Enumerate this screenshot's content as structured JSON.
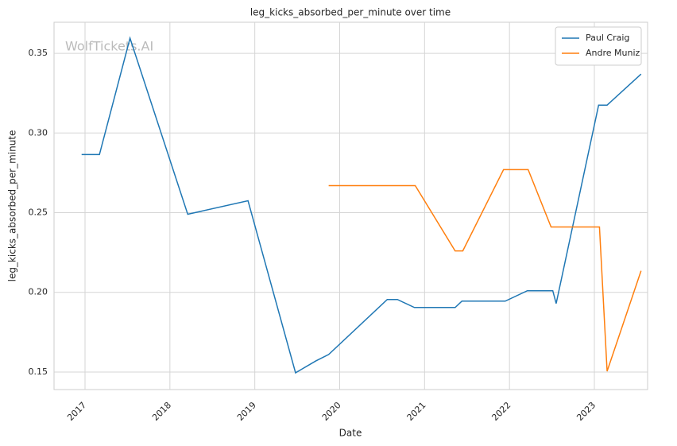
{
  "chart_data": {
    "type": "line",
    "title": "leg_kicks_absorbed_per_minute over time",
    "xlabel": "Date",
    "ylabel": "leg_kicks_absorbed_per_minute",
    "watermark": "WolfTickets.AI",
    "legend": "upper right",
    "grid": true,
    "xlim": [
      2016.635,
      2023.627
    ],
    "xticks": [
      2017,
      2018,
      2019,
      2020,
      2021,
      2022,
      2023
    ],
    "ylim": [
      0.139,
      0.3695
    ],
    "yticks": [
      0.15,
      {
        "value": 0.2,
        "label": "0.20"
      },
      0.25,
      {
        "value": 0.3,
        "label": "0.30"
      },
      0.35
    ],
    "series": [
      {
        "name": "Paul Craig",
        "color": "#1f77b4",
        "x": [
          2016.96,
          2017.17,
          2017.53,
          2018.21,
          2018.92,
          2019.48,
          2019.72,
          2019.87,
          2020.56,
          2020.68,
          2020.88,
          2021.36,
          2021.44,
          2021.95,
          2022.21,
          2022.51,
          2022.55,
          2023.05,
          2023.15,
          2023.55
        ],
        "values": [
          0.2865,
          0.2865,
          0.3595,
          0.249,
          0.2575,
          0.1495,
          0.157,
          0.161,
          0.1955,
          0.1955,
          0.1905,
          0.1905,
          0.1945,
          0.1945,
          0.201,
          0.201,
          0.193,
          0.3175,
          0.3175,
          0.337
        ]
      },
      {
        "name": "Andre Muniz",
        "color": "#ff7f0e",
        "x": [
          2019.87,
          2020.89,
          2021.36,
          2021.45,
          2021.93,
          2022.22,
          2022.49,
          2023.06,
          2023.15,
          2023.55
        ],
        "values": [
          0.267,
          0.267,
          0.226,
          0.226,
          0.277,
          0.277,
          0.241,
          0.241,
          0.1505,
          0.2135
        ]
      }
    ]
  }
}
